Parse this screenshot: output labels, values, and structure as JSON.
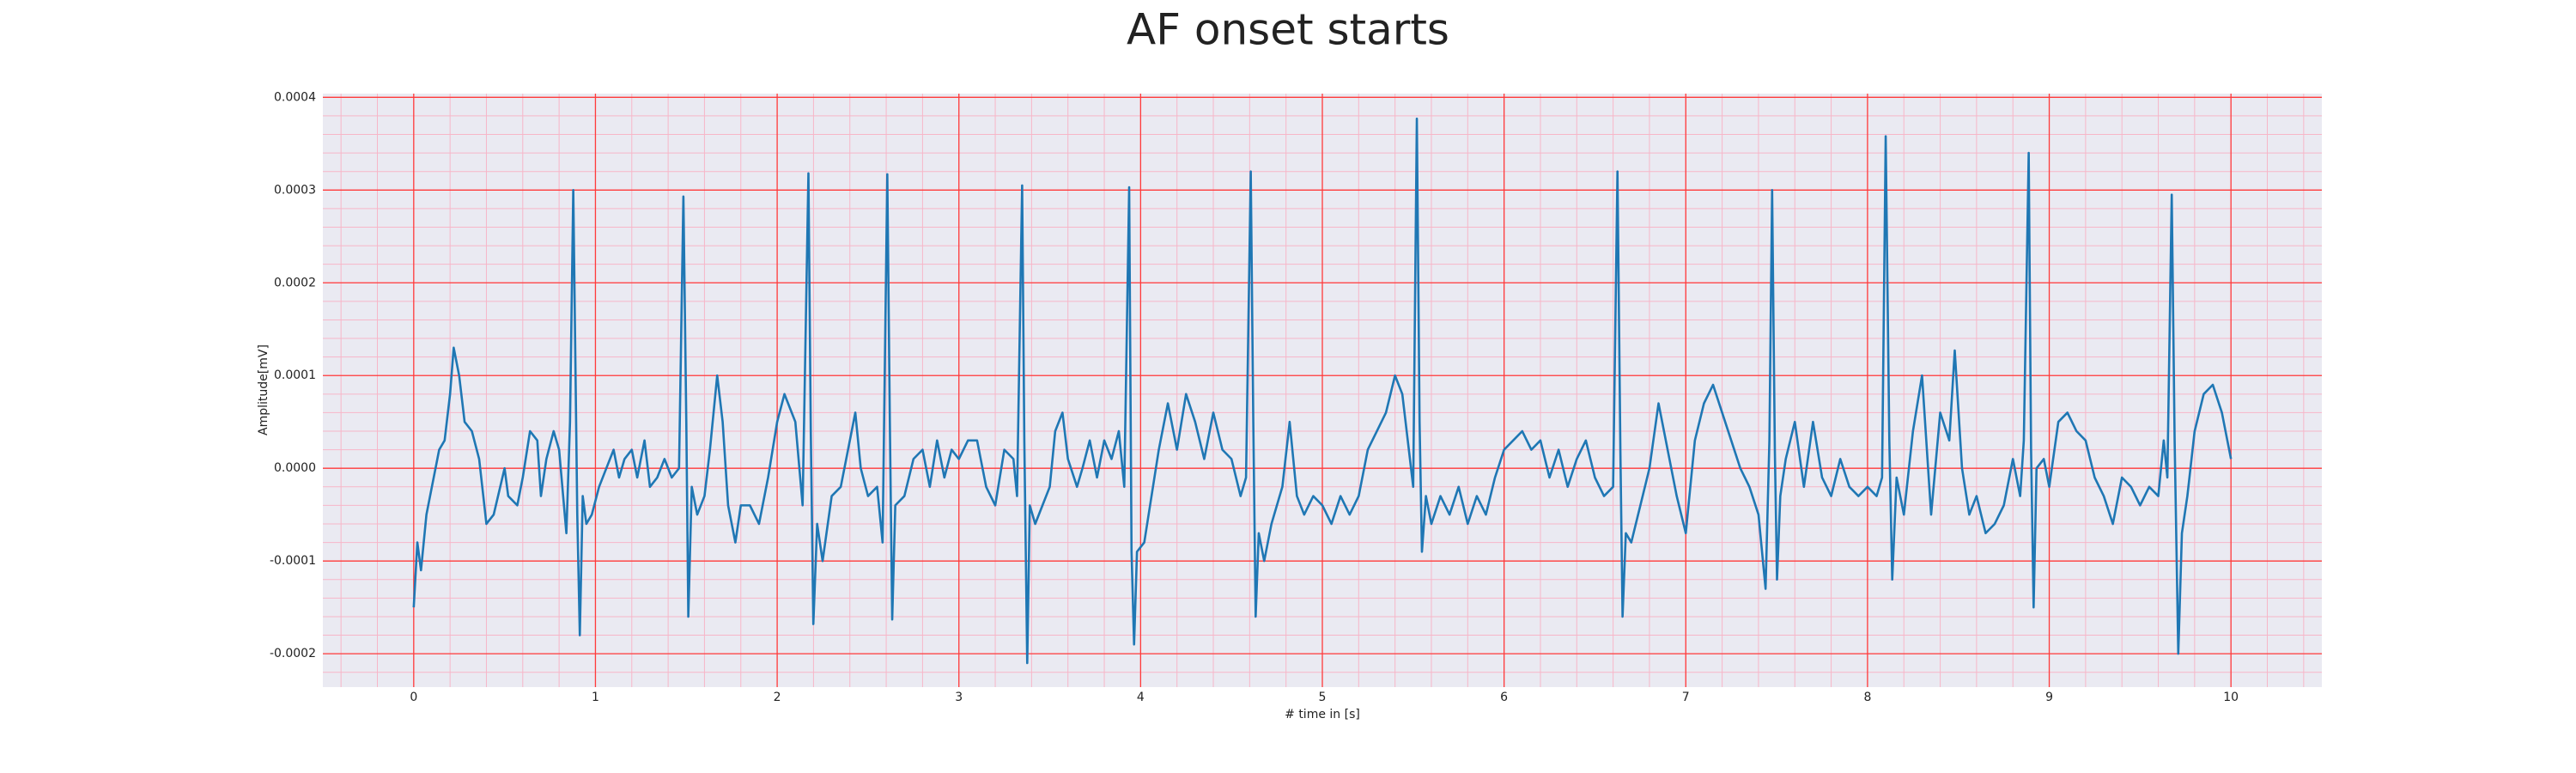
{
  "chart_data": {
    "type": "line",
    "title": "AF onset starts",
    "x_label": "# time in [s]",
    "y_label": "Amplitude[mV]",
    "xlim": [
      -0.5,
      10.5
    ],
    "ylim": [
      -0.000236,
      0.000404
    ],
    "xticks": [
      0,
      1,
      2,
      3,
      4,
      5,
      6,
      7,
      8,
      9,
      10
    ],
    "yticks": [
      -0.0002,
      -0.0001,
      {
        "value": 0,
        "label": "0.0000"
      },
      0.0001,
      0.0002,
      0.0003,
      0.0004
    ],
    "grid": true,
    "grid_color": "#ff3b3b",
    "minor_grid": true,
    "minor_grid_color": "#f7b6c8",
    "background": "#eaeaf2",
    "x": [
      0,
      0.02,
      0.04,
      0.07,
      0.1,
      0.14,
      0.17,
      0.2,
      0.22,
      0.25,
      0.28,
      0.32,
      0.36,
      0.4,
      0.44,
      0.5,
      0.52,
      0.57,
      0.6,
      0.64,
      0.68,
      0.7,
      0.73,
      0.77,
      0.8,
      0.84,
      0.86,
      0.878,
      0.9,
      0.914,
      0.93,
      0.95,
      0.98,
      1.02,
      1.06,
      1.1,
      1.13,
      1.16,
      1.2,
      1.23,
      1.27,
      1.3,
      1.34,
      1.38,
      1.42,
      1.46,
      1.484,
      1.5,
      1.511,
      1.53,
      1.56,
      1.6,
      1.63,
      1.67,
      1.7,
      1.73,
      1.77,
      1.8,
      1.85,
      1.9,
      1.95,
      2.0,
      2.04,
      2.08,
      2.1,
      2.14,
      2.172,
      2.185,
      2.199,
      2.22,
      2.25,
      2.3,
      2.35,
      2.4,
      2.43,
      2.46,
      2.5,
      2.55,
      2.58,
      2.606,
      2.62,
      2.633,
      2.65,
      2.7,
      2.75,
      2.8,
      2.84,
      2.88,
      2.92,
      2.96,
      3.0,
      3.05,
      3.1,
      3.15,
      3.2,
      3.25,
      3.3,
      3.32,
      3.348,
      3.36,
      3.376,
      3.39,
      3.42,
      3.46,
      3.5,
      3.53,
      3.57,
      3.6,
      3.65,
      3.68,
      3.72,
      3.76,
      3.8,
      3.84,
      3.88,
      3.91,
      3.937,
      3.95,
      3.964,
      3.98,
      4.02,
      4.06,
      4.1,
      4.15,
      4.2,
      4.25,
      4.3,
      4.35,
      4.4,
      4.45,
      4.5,
      4.55,
      4.58,
      4.606,
      4.62,
      4.633,
      4.65,
      4.68,
      4.72,
      4.78,
      4.82,
      4.86,
      4.9,
      4.95,
      5.0,
      5.05,
      5.1,
      5.15,
      5.2,
      5.25,
      5.3,
      5.35,
      5.4,
      5.44,
      5.47,
      5.5,
      5.52,
      5.535,
      5.548,
      5.57,
      5.6,
      5.65,
      5.7,
      5.75,
      5.8,
      5.85,
      5.9,
      5.95,
      6.0,
      6.05,
      6.1,
      6.15,
      6.2,
      6.25,
      6.3,
      6.35,
      6.4,
      6.45,
      6.5,
      6.55,
      6.6,
      6.624,
      6.64,
      6.652,
      6.67,
      6.7,
      6.75,
      6.8,
      6.85,
      6.9,
      6.95,
      7.0,
      7.05,
      7.1,
      7.15,
      7.2,
      7.25,
      7.3,
      7.35,
      7.4,
      7.439,
      7.46,
      7.475,
      7.49,
      7.502,
      7.52,
      7.55,
      7.6,
      7.65,
      7.7,
      7.75,
      7.8,
      7.85,
      7.9,
      7.95,
      8.0,
      8.05,
      8.08,
      8.1,
      8.12,
      8.136,
      8.16,
      8.2,
      8.25,
      8.3,
      8.35,
      8.4,
      8.45,
      8.48,
      8.52,
      8.56,
      8.6,
      8.65,
      8.7,
      8.75,
      8.8,
      8.84,
      8.86,
      8.887,
      8.9,
      8.914,
      8.93,
      8.97,
      9.0,
      9.05,
      9.1,
      9.15,
      9.2,
      9.25,
      9.3,
      9.35,
      9.4,
      9.45,
      9.5,
      9.55,
      9.6,
      9.63,
      9.65,
      9.674,
      9.69,
      9.71,
      9.73,
      9.76,
      9.8,
      9.85,
      9.9,
      9.95,
      10.0
    ],
    "series": [
      {
        "color": "#1f77b4",
        "values": [
          -0.00015,
          -8e-05,
          -0.00011,
          -5e-05,
          -2e-05,
          2e-05,
          3e-05,
          8e-05,
          0.00013,
          0.0001,
          5e-05,
          4e-05,
          1e-05,
          -6e-05,
          -5e-05,
          0,
          -3e-05,
          -4e-05,
          -1e-05,
          4e-05,
          3e-05,
          -3e-05,
          1e-05,
          4e-05,
          2e-05,
          -7e-05,
          5e-05,
          0.0003,
          -5e-05,
          -0.00018,
          -3e-05,
          -6e-05,
          -5e-05,
          -2e-05,
          0,
          2e-05,
          -1e-05,
          1e-05,
          2e-05,
          -1e-05,
          3e-05,
          -2e-05,
          -1e-05,
          1e-05,
          -1e-05,
          0,
          0.000293,
          5e-05,
          -0.00016,
          -2e-05,
          -5e-05,
          -3e-05,
          2e-05,
          0.0001,
          5e-05,
          -4e-05,
          -8e-05,
          -4e-05,
          -4e-05,
          -6e-05,
          -1e-05,
          5e-05,
          8e-05,
          6e-05,
          5e-05,
          -4e-05,
          0.000318,
          4e-05,
          -0.000168,
          -6e-05,
          -0.0001,
          -3e-05,
          -2e-05,
          3e-05,
          6e-05,
          0,
          -3e-05,
          -2e-05,
          -8e-05,
          0.000317,
          5e-05,
          -0.000163,
          -4e-05,
          -3e-05,
          1e-05,
          2e-05,
          -2e-05,
          3e-05,
          -1e-05,
          2e-05,
          1e-05,
          3e-05,
          3e-05,
          -2e-05,
          -4e-05,
          2e-05,
          1e-05,
          -3e-05,
          0.000305,
          3e-05,
          -0.00021,
          -4e-05,
          -6e-05,
          -4e-05,
          -2e-05,
          4e-05,
          6e-05,
          1e-05,
          -2e-05,
          0,
          3e-05,
          -1e-05,
          3e-05,
          1e-05,
          4e-05,
          -2e-05,
          0.000303,
          -9e-05,
          -0.00019,
          -9e-05,
          -8e-05,
          -3e-05,
          2e-05,
          7e-05,
          2e-05,
          8e-05,
          5e-05,
          1e-05,
          6e-05,
          2e-05,
          1e-05,
          -3e-05,
          -1e-05,
          0.00032,
          5e-05,
          -0.00016,
          -7e-05,
          -0.0001,
          -6e-05,
          -2e-05,
          5e-05,
          -3e-05,
          -5e-05,
          -3e-05,
          -4e-05,
          -6e-05,
          -3e-05,
          -5e-05,
          -3e-05,
          2e-05,
          4e-05,
          6e-05,
          0.0001,
          8e-05,
          3e-05,
          -2e-05,
          0.000377,
          5e-05,
          -9e-05,
          -3e-05,
          -6e-05,
          -3e-05,
          -5e-05,
          -2e-05,
          -6e-05,
          -3e-05,
          -5e-05,
          -1e-05,
          2e-05,
          3e-05,
          4e-05,
          2e-05,
          3e-05,
          -1e-05,
          2e-05,
          -2e-05,
          1e-05,
          3e-05,
          -1e-05,
          -3e-05,
          -2e-05,
          0.00032,
          2e-05,
          -0.00016,
          -7e-05,
          -8e-05,
          -4e-05,
          0,
          7e-05,
          2e-05,
          -3e-05,
          -7e-05,
          3e-05,
          7e-05,
          9e-05,
          6e-05,
          3e-05,
          0,
          -2e-05,
          -5e-05,
          -0.00013,
          3e-05,
          0.0003,
          2e-05,
          -0.00012,
          -3e-05,
          1e-05,
          5e-05,
          -2e-05,
          5e-05,
          -1e-05,
          -3e-05,
          1e-05,
          -2e-05,
          -3e-05,
          -2e-05,
          -3e-05,
          -1e-05,
          0.000358,
          3e-05,
          -0.00012,
          -1e-05,
          -5e-05,
          4e-05,
          0.0001,
          -5e-05,
          6e-05,
          3e-05,
          0.000127,
          0,
          -5e-05,
          -3e-05,
          -7e-05,
          -6e-05,
          -4e-05,
          1e-05,
          -3e-05,
          3e-05,
          0.00034,
          2e-05,
          -0.00015,
          0,
          1e-05,
          -2e-05,
          5e-05,
          6e-05,
          4e-05,
          3e-05,
          -1e-05,
          -3e-05,
          -6e-05,
          -1e-05,
          -2e-05,
          -4e-05,
          -2e-05,
          -3e-05,
          3e-05,
          -1e-05,
          0.000295,
          3e-05,
          -0.0002,
          -7e-05,
          -3e-05,
          4e-05,
          8e-05,
          9e-05,
          6e-05,
          1e-05
        ]
      }
    ]
  }
}
